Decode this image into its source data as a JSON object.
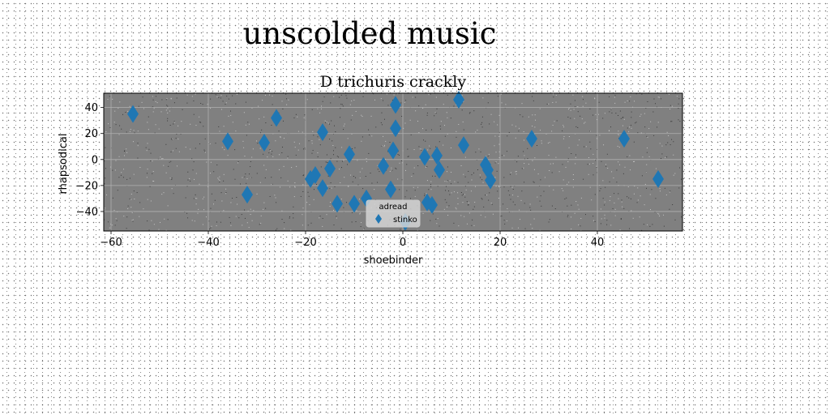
{
  "suptitle": "unscolded music",
  "chart_data": {
    "type": "scatter",
    "title": "D trichuris crackly",
    "xlabel": "shoebinder",
    "ylabel": "rhapsodical",
    "xlim": [
      -61.5,
      57.5
    ],
    "ylim": [
      -55,
      51
    ],
    "xticks": [
      -60,
      -40,
      -20,
      0,
      20,
      40
    ],
    "yticks": [
      -40,
      -20,
      0,
      20,
      40
    ],
    "grid": true,
    "legend": {
      "title": "adread",
      "placement": "lower center"
    },
    "series": [
      {
        "name": "stinko",
        "marker": "diamond",
        "color": "#1f77b4",
        "x": [
          -55.5,
          -36,
          -32,
          -28.5,
          -26,
          -19,
          -18,
          -16.5,
          -16.5,
          -15,
          -13.5,
          -11,
          -10,
          -7.5,
          -4,
          -2.5,
          -2,
          -1.5,
          -1.5,
          0.5,
          4.5,
          5,
          6,
          7,
          7.5,
          11.5,
          12.5,
          17,
          17.5,
          18,
          26.5,
          45.5,
          52.5
        ],
        "y": [
          35,
          14,
          -27,
          13,
          32,
          -15,
          -12,
          21,
          -22,
          -7,
          -34,
          4,
          -34,
          -30,
          -5,
          -23,
          7,
          24,
          42,
          -48,
          2,
          -33,
          -35,
          3,
          -8,
          46,
          11,
          -4,
          -8,
          -16,
          16,
          16,
          -15
        ]
      }
    ],
    "facecolor": "#808080"
  }
}
